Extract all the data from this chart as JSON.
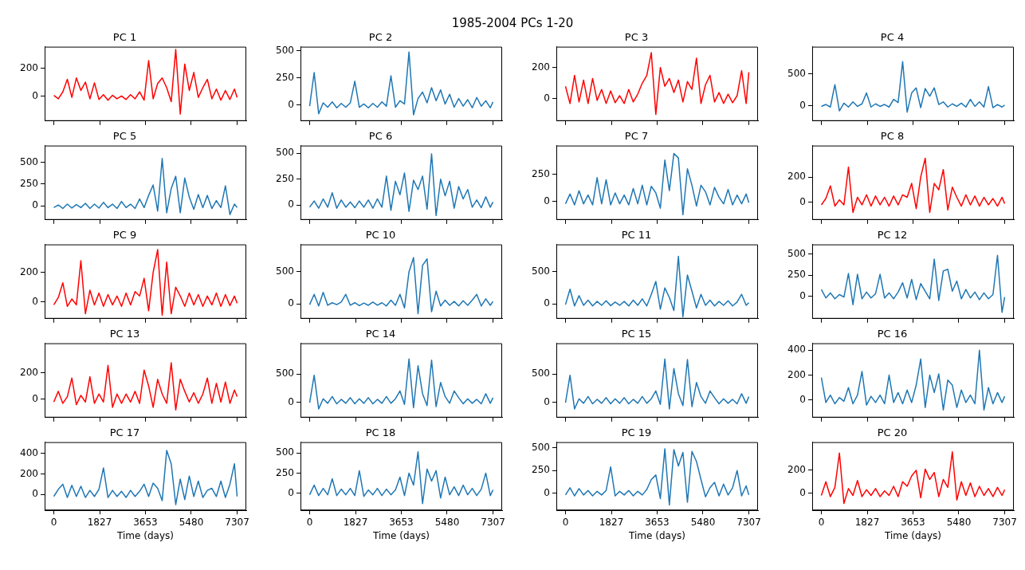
{
  "chart_data": [
    {
      "type": "other",
      "title": "1985-2004 PCs 1-20"
    },
    {
      "type": "line",
      "title": "PC 1",
      "color": "#ff0000",
      "tick_labels": "y",
      "xlim": [
        -365,
        7672
      ],
      "ylim": [
        -180,
        355
      ],
      "xticks": [
        0,
        1827,
        3653,
        5480,
        7307
      ],
      "yticks": [
        0,
        200
      ],
      "x": [
        0,
        180,
        360,
        540,
        720,
        900,
        1080,
        1260,
        1440,
        1620,
        1800,
        1980,
        2160,
        2340,
        2520,
        2700,
        2880,
        3060,
        3240,
        3420,
        3600,
        3780,
        3960,
        4140,
        4320,
        4500,
        4680,
        4860,
        5040,
        5220,
        5400,
        5580,
        5760,
        5940,
        6120,
        6300,
        6480,
        6660,
        6840,
        7020,
        7200,
        7307
      ],
      "values": [
        5,
        -20,
        30,
        120,
        -10,
        130,
        40,
        100,
        -20,
        95,
        -25,
        10,
        -30,
        5,
        -20,
        0,
        -25,
        10,
        -20,
        30,
        -30,
        255,
        -20,
        90,
        130,
        60,
        -40,
        335,
        -130,
        230,
        40,
        170,
        -10,
        60,
        120,
        -20,
        50,
        -30,
        40,
        -25,
        50,
        -10
      ]
    },
    {
      "type": "line",
      "title": "PC 2",
      "color": "#1f77b4",
      "tick_labels": "y",
      "xlim": [
        -365,
        7672
      ],
      "ylim": [
        -147,
        538
      ],
      "xticks": [
        0,
        1827,
        3653,
        5480,
        7307
      ],
      "yticks": [
        0,
        250,
        500
      ],
      "x": [
        0,
        180,
        360,
        540,
        720,
        900,
        1080,
        1260,
        1440,
        1620,
        1800,
        1980,
        2160,
        2340,
        2520,
        2700,
        2880,
        3060,
        3240,
        3420,
        3600,
        3780,
        3960,
        4140,
        4320,
        4500,
        4680,
        4860,
        5040,
        5220,
        5400,
        5580,
        5760,
        5940,
        6120,
        6300,
        6480,
        6660,
        6840,
        7020,
        7200,
        7307
      ],
      "values": [
        -10,
        300,
        -80,
        20,
        -20,
        30,
        -25,
        15,
        -20,
        20,
        220,
        -20,
        10,
        -25,
        15,
        -20,
        30,
        -10,
        270,
        -20,
        40,
        10,
        490,
        -90,
        60,
        120,
        20,
        160,
        40,
        140,
        10,
        100,
        -20,
        60,
        -10,
        50,
        -25,
        70,
        -10,
        40,
        -25,
        30
      ]
    },
    {
      "type": "line",
      "title": "PC 3",
      "color": "#ff0000",
      "tick_labels": "y",
      "xlim": [
        -365,
        7672
      ],
      "ylim": [
        -142,
        333
      ],
      "xticks": [
        0,
        1827,
        3653,
        5480,
        7307
      ],
      "yticks": [
        0,
        200
      ],
      "x": [
        0,
        180,
        360,
        540,
        720,
        900,
        1080,
        1260,
        1440,
        1620,
        1800,
        1980,
        2160,
        2340,
        2520,
        2700,
        2880,
        3060,
        3240,
        3420,
        3600,
        3780,
        3960,
        4140,
        4320,
        4500,
        4680,
        4860,
        5040,
        5220,
        5400,
        5580,
        5760,
        5940,
        6120,
        6300,
        6480,
        6660,
        6840,
        7020,
        7200,
        7307
      ],
      "values": [
        80,
        -30,
        150,
        -20,
        120,
        -30,
        130,
        -10,
        60,
        -30,
        50,
        -25,
        20,
        -30,
        60,
        -20,
        30,
        100,
        150,
        295,
        -100,
        200,
        80,
        130,
        40,
        120,
        -20,
        110,
        60,
        260,
        -30,
        90,
        150,
        -20,
        40,
        -30,
        30,
        -25,
        20,
        180,
        -30,
        170
      ]
    },
    {
      "type": "line",
      "title": "PC 4",
      "color": "#1f77b4",
      "tick_labels": "y",
      "xlim": [
        -365,
        7672
      ],
      "ylim": [
        -239,
        924
      ],
      "xticks": [
        0,
        1827,
        3653,
        5480,
        7307
      ],
      "yticks": [
        0,
        500
      ],
      "x": [
        0,
        180,
        360,
        540,
        720,
        900,
        1080,
        1260,
        1440,
        1620,
        1800,
        1980,
        2160,
        2340,
        2520,
        2700,
        2880,
        3060,
        3240,
        3420,
        3600,
        3780,
        3960,
        4140,
        4320,
        4500,
        4680,
        4860,
        5040,
        5220,
        5400,
        5580,
        5760,
        5940,
        6120,
        6300,
        6480,
        6660,
        6840,
        7020,
        7200,
        7307
      ],
      "values": [
        -10,
        20,
        -20,
        330,
        -80,
        40,
        -20,
        60,
        -10,
        30,
        200,
        -20,
        30,
        -10,
        20,
        -20,
        100,
        50,
        690,
        -100,
        200,
        280,
        -30,
        270,
        150,
        280,
        20,
        60,
        -20,
        30,
        -10,
        40,
        -20,
        100,
        -10,
        60,
        -20,
        300,
        -30,
        20,
        -20,
        10
      ]
    },
    {
      "type": "line",
      "title": "PC 5",
      "color": "#1f77b4",
      "tick_labels": "y",
      "xlim": [
        -365,
        7672
      ],
      "ylim": [
        -161,
        693
      ],
      "xticks": [
        0,
        1827,
        3653,
        5480,
        7307
      ],
      "yticks": [
        0,
        250,
        500
      ],
      "x": [
        0,
        180,
        360,
        540,
        720,
        900,
        1080,
        1260,
        1440,
        1620,
        1800,
        1980,
        2160,
        2340,
        2520,
        2700,
        2880,
        3060,
        3240,
        3420,
        3600,
        3780,
        3960,
        4140,
        4320,
        4500,
        4680,
        4860,
        5040,
        5220,
        5400,
        5580,
        5760,
        5940,
        6120,
        6300,
        6480,
        6660,
        6840,
        7020,
        7200,
        7307
      ],
      "values": [
        -20,
        10,
        -30,
        20,
        -25,
        15,
        -20,
        30,
        -30,
        20,
        -25,
        40,
        -20,
        20,
        -30,
        50,
        -20,
        20,
        -30,
        80,
        -20,
        120,
        240,
        -60,
        545,
        -80,
        200,
        340,
        -80,
        320,
        100,
        -40,
        130,
        -20,
        120,
        -30,
        60,
        -20,
        230,
        -100,
        20,
        -20
      ]
    },
    {
      "type": "line",
      "title": "PC 6",
      "color": "#1f77b4",
      "tick_labels": "y",
      "xlim": [
        -365,
        7672
      ],
      "ylim": [
        -142,
        574
      ],
      "xticks": [
        0,
        1827,
        3653,
        5480,
        7307
      ],
      "yticks": [
        0,
        250,
        500
      ],
      "x": [
        0,
        180,
        360,
        540,
        720,
        900,
        1080,
        1260,
        1440,
        1620,
        1800,
        1980,
        2160,
        2340,
        2520,
        2700,
        2880,
        3060,
        3240,
        3420,
        3600,
        3780,
        3960,
        4140,
        4320,
        4500,
        4680,
        4860,
        5040,
        5220,
        5400,
        5580,
        5760,
        5940,
        6120,
        6300,
        6480,
        6660,
        6840,
        7020,
        7200,
        7307
      ],
      "values": [
        -20,
        40,
        -30,
        60,
        -20,
        120,
        -30,
        50,
        -20,
        30,
        -25,
        40,
        -20,
        50,
        -30,
        60,
        -20,
        280,
        -50,
        230,
        100,
        310,
        -60,
        240,
        150,
        280,
        -40,
        495,
        -100,
        250,
        90,
        230,
        -30,
        180,
        60,
        150,
        -20,
        50,
        -25,
        80,
        -20,
        30
      ]
    },
    {
      "type": "line",
      "title": "PC 7",
      "color": "#1f77b4",
      "tick_labels": "y",
      "xlim": [
        -365,
        7672
      ],
      "ylim": [
        -167,
        513
      ],
      "xticks": [
        0,
        1827,
        3653,
        5480,
        7307
      ],
      "yticks": [
        0,
        250
      ],
      "x": [
        0,
        180,
        360,
        540,
        720,
        900,
        1080,
        1260,
        1440,
        1620,
        1800,
        1980,
        2160,
        2340,
        2520,
        2700,
        2880,
        3060,
        3240,
        3420,
        3600,
        3780,
        3960,
        4140,
        4320,
        4500,
        4680,
        4860,
        5040,
        5220,
        5400,
        5580,
        5760,
        5940,
        6120,
        6300,
        6480,
        6660,
        6840,
        7020,
        7200,
        7307
      ],
      "values": [
        -20,
        70,
        -30,
        100,
        -20,
        60,
        -30,
        220,
        -20,
        200,
        -30,
        80,
        -20,
        60,
        -30,
        120,
        -20,
        150,
        -30,
        140,
        80,
        -60,
        380,
        100,
        440,
        400,
        -120,
        300,
        150,
        -40,
        150,
        90,
        -30,
        130,
        40,
        -20,
        110,
        -30,
        60,
        -20,
        70,
        -10
      ]
    },
    {
      "type": "line",
      "title": "PC 8",
      "color": "#ff0000",
      "tick_labels": "y",
      "xlim": [
        -365,
        7672
      ],
      "ylim": [
        -139,
        450
      ],
      "xticks": [
        0,
        1827,
        3653,
        5480,
        7307
      ],
      "yticks": [
        0,
        200
      ],
      "x": [
        0,
        180,
        360,
        540,
        720,
        900,
        1080,
        1260,
        1440,
        1620,
        1800,
        1980,
        2160,
        2340,
        2520,
        2700,
        2880,
        3060,
        3240,
        3420,
        3600,
        3780,
        3960,
        4140,
        4320,
        4500,
        4680,
        4860,
        5040,
        5220,
        5400,
        5580,
        5760,
        5940,
        6120,
        6300,
        6480,
        6660,
        6840,
        7020,
        7200,
        7307
      ],
      "values": [
        -20,
        30,
        130,
        -30,
        20,
        -20,
        280,
        -80,
        40,
        -20,
        60,
        -30,
        50,
        -20,
        40,
        -30,
        50,
        -20,
        60,
        40,
        150,
        -50,
        200,
        350,
        -80,
        150,
        100,
        260,
        -60,
        120,
        40,
        -30,
        60,
        -20,
        50,
        -30,
        40,
        -20,
        30,
        -30,
        40,
        -10
      ]
    },
    {
      "type": "line",
      "title": "PC 9",
      "color": "#ff0000",
      "tick_labels": "y",
      "xlim": [
        -365,
        7672
      ],
      "ylim": [
        -114,
        390
      ],
      "xticks": [
        0,
        1827,
        3653,
        5480,
        7307
      ],
      "yticks": [
        0,
        200
      ],
      "x": [
        0,
        180,
        360,
        540,
        720,
        900,
        1080,
        1260,
        1440,
        1620,
        1800,
        1980,
        2160,
        2340,
        2520,
        2700,
        2880,
        3060,
        3240,
        3420,
        3600,
        3780,
        3960,
        4140,
        4320,
        4500,
        4680,
        4860,
        5040,
        5220,
        5400,
        5580,
        5760,
        5940,
        6120,
        6300,
        6480,
        6660,
        6840,
        7020,
        7200,
        7307
      ],
      "values": [
        -20,
        30,
        130,
        -30,
        20,
        -20,
        280,
        -80,
        80,
        -20,
        60,
        -30,
        50,
        -20,
        40,
        -30,
        60,
        -20,
        70,
        40,
        160,
        -60,
        200,
        355,
        -90,
        270,
        -80,
        100,
        40,
        -30,
        60,
        -20,
        50,
        -30,
        40,
        -20,
        60,
        -30,
        50,
        -25,
        40,
        -10
      ]
    },
    {
      "type": "line",
      "title": "PC 10",
      "color": "#1f77b4",
      "tick_labels": "y",
      "xlim": [
        -365,
        7672
      ],
      "ylim": [
        -228,
        924
      ],
      "xticks": [
        0,
        1827,
        3653,
        5480,
        7307
      ],
      "yticks": [
        0,
        500
      ],
      "x": [
        0,
        180,
        360,
        540,
        720,
        900,
        1080,
        1260,
        1440,
        1620,
        1800,
        1980,
        2160,
        2340,
        2520,
        2700,
        2880,
        3060,
        3240,
        3420,
        3600,
        3780,
        3960,
        4140,
        4320,
        4500,
        4680,
        4860,
        5040,
        5220,
        5400,
        5580,
        5760,
        5940,
        6120,
        6300,
        6480,
        6660,
        6840,
        7020,
        7200,
        7307
      ],
      "values": [
        -10,
        150,
        -30,
        180,
        -20,
        20,
        -10,
        30,
        150,
        -20,
        20,
        -25,
        15,
        -20,
        30,
        -20,
        20,
        -30,
        60,
        -20,
        150,
        -60,
        500,
        720,
        -150,
        600,
        700,
        -120,
        200,
        -30,
        60,
        -20,
        40,
        -30,
        50,
        -20,
        60,
        150,
        -30,
        80,
        -20,
        40
      ]
    },
    {
      "type": "line",
      "title": "PC 11",
      "color": "#1f77b4",
      "tick_labels": "y",
      "xlim": [
        -365,
        7672
      ],
      "ylim": [
        -228,
        924
      ],
      "xticks": [
        0,
        1827,
        3653,
        5480,
        7307
      ],
      "yticks": [
        0,
        500
      ],
      "x": [
        0,
        180,
        360,
        540,
        720,
        900,
        1080,
        1260,
        1440,
        1620,
        1800,
        1980,
        2160,
        2340,
        2520,
        2700,
        2880,
        3060,
        3240,
        3420,
        3600,
        3780,
        3960,
        4140,
        4320,
        4500,
        4680,
        4860,
        5040,
        5220,
        5400,
        5580,
        5760,
        5940,
        6120,
        6300,
        6480,
        6660,
        6840,
        7020,
        7200,
        7307
      ],
      "values": [
        -10,
        230,
        -30,
        130,
        -20,
        60,
        -30,
        40,
        -20,
        50,
        -25,
        30,
        -20,
        40,
        -30,
        60,
        -20,
        80,
        -30,
        150,
        350,
        -80,
        250,
        100,
        -100,
        740,
        -200,
        450,
        200,
        -60,
        150,
        -20,
        60,
        -30,
        40,
        -20,
        50,
        -30,
        30,
        150,
        -20,
        20
      ]
    },
    {
      "type": "line",
      "title": "PC 12",
      "color": "#1f77b4",
      "tick_labels": "y",
      "xlim": [
        -365,
        7672
      ],
      "ylim": [
        -266,
        614
      ],
      "xticks": [
        0,
        1827,
        3653,
        5480,
        7307
      ],
      "yticks": [
        0,
        250,
        500
      ],
      "x": [
        0,
        180,
        360,
        540,
        720,
        900,
        1080,
        1260,
        1440,
        1620,
        1800,
        1980,
        2160,
        2340,
        2520,
        2700,
        2880,
        3060,
        3240,
        3420,
        3600,
        3780,
        3960,
        4140,
        4320,
        4500,
        4680,
        4860,
        5040,
        5220,
        5400,
        5580,
        5760,
        5940,
        6120,
        6300,
        6480,
        6660,
        6840,
        7020,
        7200,
        7307
      ],
      "values": [
        80,
        -20,
        40,
        -30,
        20,
        -10,
        270,
        -100,
        260,
        -30,
        50,
        -20,
        30,
        260,
        -20,
        40,
        -30,
        50,
        160,
        -20,
        200,
        -40,
        150,
        60,
        -30,
        440,
        -50,
        300,
        320,
        60,
        180,
        -30,
        80,
        -20,
        50,
        -40,
        40,
        -30,
        20,
        485,
        -190,
        -10
      ]
    },
    {
      "type": "line",
      "title": "PC 13",
      "color": "#ff0000",
      "tick_labels": "y",
      "xlim": [
        -365,
        7672
      ],
      "ylim": [
        -137,
        421
      ],
      "xticks": [
        0,
        1827,
        3653,
        5480,
        7307
      ],
      "yticks": [
        0,
        200
      ],
      "x": [
        0,
        180,
        360,
        540,
        720,
        900,
        1080,
        1260,
        1440,
        1620,
        1800,
        1980,
        2160,
        2340,
        2520,
        2700,
        2880,
        3060,
        3240,
        3420,
        3600,
        3780,
        3960,
        4140,
        4320,
        4500,
        4680,
        4860,
        5040,
        5220,
        5400,
        5580,
        5760,
        5940,
        6120,
        6300,
        6480,
        6660,
        6840,
        7020,
        7200,
        7307
      ],
      "values": [
        -20,
        60,
        -30,
        20,
        160,
        -40,
        30,
        -20,
        170,
        -30,
        40,
        -20,
        255,
        -60,
        40,
        -30,
        40,
        -20,
        60,
        -30,
        220,
        100,
        -60,
        150,
        40,
        -30,
        275,
        -80,
        150,
        60,
        -20,
        50,
        -30,
        40,
        160,
        -30,
        120,
        -20,
        130,
        -30,
        70,
        20
      ]
    },
    {
      "type": "line",
      "title": "PC 14",
      "color": "#1f77b4",
      "tick_labels": "y",
      "xlim": [
        -365,
        7672
      ],
      "ylim": [
        -275,
        1050
      ],
      "xticks": [
        0,
        1827,
        3653,
        5480,
        7307
      ],
      "yticks": [
        0,
        500
      ],
      "x": [
        0,
        180,
        360,
        540,
        720,
        900,
        1080,
        1260,
        1440,
        1620,
        1800,
        1980,
        2160,
        2340,
        2520,
        2700,
        2880,
        3060,
        3240,
        3420,
        3600,
        3780,
        3960,
        4140,
        4320,
        4500,
        4680,
        4860,
        5040,
        5220,
        5400,
        5580,
        5760,
        5940,
        6120,
        6300,
        6480,
        6660,
        6840,
        7020,
        7200,
        7307
      ],
      "values": [
        -10,
        480,
        -120,
        60,
        -20,
        100,
        -30,
        50,
        -20,
        80,
        -30,
        60,
        -20,
        80,
        -30,
        50,
        -20,
        100,
        -20,
        60,
        200,
        -40,
        770,
        -100,
        650,
        150,
        -60,
        750,
        -80,
        350,
        100,
        -20,
        200,
        80,
        -30,
        60,
        -20,
        50,
        -30,
        150,
        -20,
        80
      ]
    },
    {
      "type": "line",
      "title": "PC 15",
      "color": "#1f77b4",
      "tick_labels": "y",
      "xlim": [
        -365,
        7672
      ],
      "ylim": [
        -275,
        1050
      ],
      "xticks": [
        0,
        1827,
        3653,
        5480,
        7307
      ],
      "yticks": [
        0,
        500
      ],
      "x": [
        0,
        180,
        360,
        540,
        720,
        900,
        1080,
        1260,
        1440,
        1620,
        1800,
        1980,
        2160,
        2340,
        2520,
        2700,
        2880,
        3060,
        3240,
        3420,
        3600,
        3780,
        3960,
        4140,
        4320,
        4500,
        4680,
        4860,
        5040,
        5220,
        5400,
        5580,
        5760,
        5940,
        6120,
        6300,
        6480,
        6660,
        6840,
        7020,
        7200,
        7307
      ],
      "values": [
        -10,
        480,
        -120,
        60,
        -20,
        100,
        -30,
        50,
        -20,
        80,
        -30,
        60,
        -20,
        80,
        -30,
        50,
        -20,
        100,
        -20,
        60,
        200,
        -40,
        770,
        -120,
        600,
        150,
        -60,
        760,
        -80,
        350,
        100,
        -20,
        200,
        80,
        -30,
        60,
        -20,
        50,
        -30,
        150,
        -20,
        100
      ]
    },
    {
      "type": "line",
      "title": "PC 16",
      "color": "#1f77b4",
      "tick_labels": "y",
      "xlim": [
        -365,
        7672
      ],
      "ylim": [
        -141,
        456
      ],
      "xticks": [
        0,
        1827,
        3653,
        5480,
        7307
      ],
      "yticks": [
        0,
        200,
        400
      ],
      "x": [
        0,
        180,
        360,
        540,
        720,
        900,
        1080,
        1260,
        1440,
        1620,
        1800,
        1980,
        2160,
        2340,
        2520,
        2700,
        2880,
        3060,
        3240,
        3420,
        3600,
        3780,
        3960,
        4140,
        4320,
        4500,
        4680,
        4860,
        5040,
        5220,
        5400,
        5580,
        5760,
        5940,
        6120,
        6300,
        6480,
        6660,
        6840,
        7020,
        7200,
        7307
      ],
      "values": [
        180,
        -20,
        40,
        -30,
        20,
        -10,
        100,
        -30,
        40,
        230,
        -40,
        30,
        -20,
        40,
        -30,
        200,
        -20,
        60,
        -30,
        80,
        -20,
        120,
        330,
        -60,
        200,
        60,
        210,
        -80,
        160,
        120,
        -60,
        80,
        -20,
        40,
        -30,
        400,
        -80,
        100,
        -30,
        60,
        -20,
        30
      ]
    },
    {
      "type": "line",
      "title": "PC 17",
      "color": "#1f77b4",
      "xlabel": "Time (days)",
      "xlim": [
        -365,
        7672
      ],
      "ylim": [
        -156,
        512
      ],
      "xticks": [
        0,
        1827,
        3653,
        5480,
        7307
      ],
      "yticks": [
        0,
        200,
        400
      ],
      "x": [
        0,
        180,
        360,
        540,
        720,
        900,
        1080,
        1260,
        1440,
        1620,
        1800,
        1980,
        2160,
        2340,
        2520,
        2700,
        2880,
        3060,
        3240,
        3420,
        3600,
        3780,
        3960,
        4140,
        4320,
        4500,
        4680,
        4860,
        5040,
        5220,
        5400,
        5580,
        5760,
        5940,
        6120,
        6300,
        6480,
        6660,
        6840,
        7020,
        7200,
        7307
      ],
      "values": [
        -20,
        50,
        100,
        -30,
        90,
        -20,
        80,
        -30,
        40,
        -20,
        50,
        260,
        -30,
        40,
        -20,
        30,
        -30,
        40,
        -20,
        30,
        100,
        -20,
        110,
        60,
        -60,
        430,
        300,
        -100,
        150,
        -50,
        180,
        -20,
        130,
        -30,
        40,
        60,
        -20,
        130,
        -30,
        100,
        300,
        -20
      ]
    },
    {
      "type": "line",
      "title": "PC 18",
      "color": "#1f77b4",
      "xlabel": "Time (days)",
      "xlim": [
        -365,
        7672
      ],
      "ylim": [
        -214,
        635
      ],
      "xticks": [
        0,
        1827,
        3653,
        5480,
        7307
      ],
      "yticks": [
        0,
        250,
        500
      ],
      "x": [
        0,
        180,
        360,
        540,
        720,
        900,
        1080,
        1260,
        1440,
        1620,
        1800,
        1980,
        2160,
        2340,
        2520,
        2700,
        2880,
        3060,
        3240,
        3420,
        3600,
        3780,
        3960,
        4140,
        4320,
        4500,
        4680,
        4860,
        5040,
        5220,
        5400,
        5580,
        5760,
        5940,
        6120,
        6300,
        6480,
        6660,
        6840,
        7020,
        7200,
        7307
      ],
      "values": [
        -20,
        100,
        -30,
        60,
        -20,
        180,
        -30,
        50,
        -20,
        60,
        -30,
        280,
        -40,
        40,
        -20,
        60,
        -30,
        50,
        -20,
        40,
        200,
        -30,
        250,
        100,
        515,
        -130,
        300,
        150,
        280,
        -60,
        200,
        -20,
        80,
        -30,
        100,
        -20,
        60,
        -30,
        50,
        250,
        -30,
        40
      ]
    },
    {
      "type": "line",
      "title": "PC 19",
      "color": "#1f77b4",
      "xlabel": "Time (days)",
      "xlim": [
        -365,
        7672
      ],
      "ylim": [
        -190,
        563
      ],
      "xticks": [
        0,
        1827,
        3653,
        5480,
        7307
      ],
      "yticks": [
        0,
        250,
        500
      ],
      "x": [
        0,
        180,
        360,
        540,
        720,
        900,
        1080,
        1260,
        1440,
        1620,
        1800,
        1980,
        2160,
        2340,
        2520,
        2700,
        2880,
        3060,
        3240,
        3420,
        3600,
        3780,
        3960,
        4140,
        4320,
        4500,
        4680,
        4860,
        5040,
        5220,
        5400,
        5580,
        5760,
        5940,
        6120,
        6300,
        6480,
        6660,
        6840,
        7020,
        7200,
        7307
      ],
      "values": [
        -20,
        60,
        -30,
        50,
        -20,
        30,
        -30,
        20,
        -20,
        30,
        290,
        -30,
        20,
        -20,
        30,
        -30,
        20,
        -20,
        40,
        150,
        200,
        -60,
        490,
        -130,
        480,
        300,
        450,
        -100,
        460,
        350,
        150,
        -40,
        60,
        120,
        -30,
        100,
        -20,
        60,
        250,
        -30,
        80,
        -20
      ]
    },
    {
      "type": "line",
      "title": "PC 20",
      "color": "#ff0000",
      "xlabel": "Time (days)",
      "xlim": [
        -365,
        7672
      ],
      "ylim": [
        -150,
        445
      ],
      "xticks": [
        0,
        1827,
        3653,
        5480,
        7307
      ],
      "yticks": [
        0,
        200
      ],
      "x": [
        0,
        180,
        360,
        540,
        720,
        900,
        1080,
        1260,
        1440,
        1620,
        1800,
        1980,
        2160,
        2340,
        2520,
        2700,
        2880,
        3060,
        3240,
        3420,
        3600,
        3780,
        3960,
        4140,
        4320,
        4500,
        4680,
        4860,
        5040,
        5220,
        5400,
        5580,
        5760,
        5940,
        6120,
        6300,
        6480,
        6660,
        6840,
        7020,
        7200,
        7307
      ],
      "values": [
        -20,
        100,
        -30,
        50,
        350,
        -90,
        40,
        -20,
        110,
        -30,
        30,
        -20,
        40,
        -30,
        20,
        -20,
        60,
        -30,
        100,
        60,
        150,
        200,
        -40,
        210,
        120,
        180,
        -30,
        120,
        50,
        360,
        -60,
        100,
        -20,
        90,
        -30,
        60,
        -20,
        40,
        -30,
        50,
        -20,
        30
      ]
    }
  ]
}
